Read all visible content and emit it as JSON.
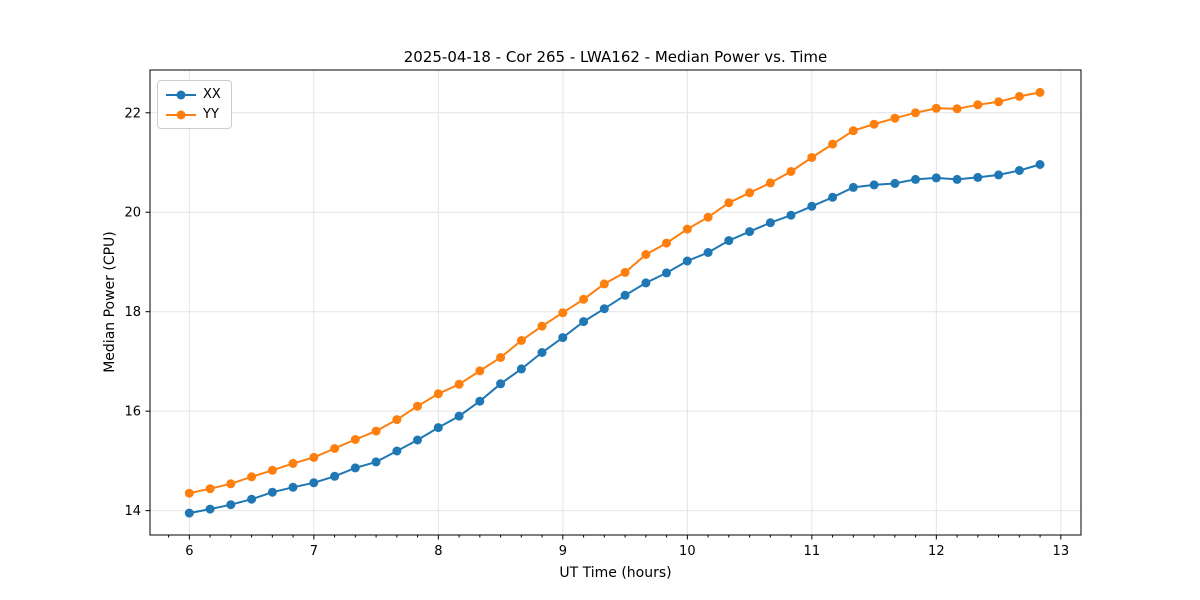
{
  "chart_data": {
    "type": "line",
    "title": "2025-04-18 - Cor 265 - LWA162 - Median Power vs. Time",
    "xlabel": "UT Time (hours)",
    "ylabel": "Median Power (CPU)",
    "xlim": [
      5.684,
      13.162
    ],
    "ylim": [
      13.51,
      22.86
    ],
    "xticks": [
      6,
      7,
      8,
      9,
      10,
      11,
      12,
      13
    ],
    "yticks": [
      14,
      16,
      18,
      20,
      22
    ],
    "x_minor_step": 0.1666667,
    "grid": true,
    "legend_position": "upper left",
    "marker": "circle",
    "x": [
      6.0,
      6.167,
      6.333,
      6.5,
      6.667,
      6.833,
      7.0,
      7.167,
      7.333,
      7.5,
      7.667,
      7.833,
      8.0,
      8.167,
      8.333,
      8.5,
      8.667,
      8.833,
      9.0,
      9.167,
      9.333,
      9.5,
      9.667,
      9.833,
      10.0,
      10.167,
      10.333,
      10.5,
      10.667,
      10.833,
      11.0,
      11.167,
      11.333,
      11.5,
      11.667,
      11.833,
      12.0,
      12.167,
      12.333,
      12.5,
      12.667,
      12.833
    ],
    "series": [
      {
        "name": "XX",
        "color": "#1f77b4",
        "values": [
          13.95,
          14.03,
          14.12,
          14.23,
          14.37,
          14.47,
          14.56,
          14.69,
          14.86,
          14.98,
          15.2,
          15.42,
          15.67,
          15.9,
          16.2,
          16.55,
          16.85,
          17.18,
          17.48,
          17.8,
          18.06,
          18.33,
          18.58,
          18.78,
          19.02,
          19.19,
          19.43,
          19.61,
          19.79,
          19.94,
          20.12,
          20.3,
          20.5,
          20.55,
          20.58,
          20.66,
          20.69,
          20.66,
          20.7,
          20.75,
          20.84,
          20.96
        ]
      },
      {
        "name": "YY",
        "color": "#ff7f0e",
        "values": [
          14.35,
          14.44,
          14.54,
          14.68,
          14.81,
          14.95,
          15.07,
          15.25,
          15.43,
          15.6,
          15.83,
          16.1,
          16.35,
          16.54,
          16.81,
          17.08,
          17.42,
          17.71,
          17.98,
          18.25,
          18.56,
          18.79,
          19.15,
          19.38,
          19.66,
          19.9,
          20.19,
          20.39,
          20.59,
          20.82,
          21.1,
          21.37,
          21.64,
          21.77,
          21.89,
          22.0,
          22.09,
          22.08,
          22.16,
          22.22,
          22.33,
          22.41
        ]
      }
    ],
    "style": {
      "grid_color": "#e4e4e4",
      "spine_color": "#000000",
      "tick_label_color": "#000000",
      "background": "#ffffff"
    }
  }
}
